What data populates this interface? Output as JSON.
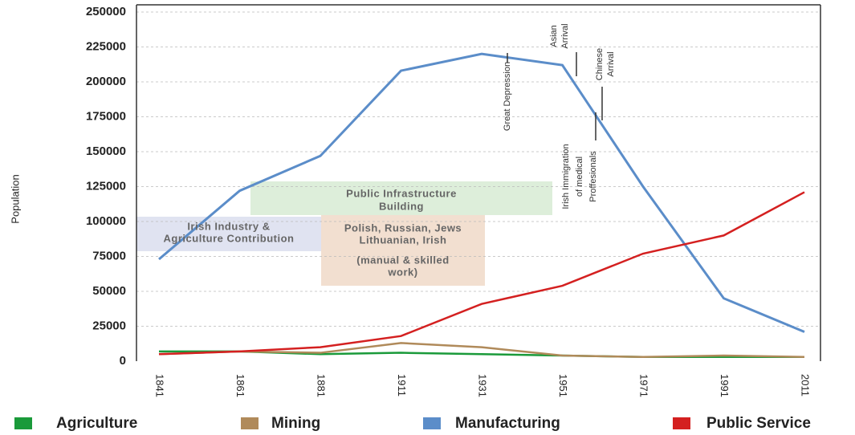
{
  "chart_data": {
    "type": "line",
    "ylabel": "Population",
    "categories": [
      "1841",
      "1861",
      "1881",
      "1911",
      "1931",
      "1951",
      "1971",
      "1991",
      "2011"
    ],
    "series": [
      {
        "name": "Agriculture",
        "color": "#1a9a3a",
        "values": [
          7000,
          7000,
          5000,
          6000,
          5000,
          4000,
          3000,
          3000,
          3000
        ]
      },
      {
        "name": "Mining",
        "color": "#b08a5a",
        "values": [
          5000,
          7000,
          6000,
          13000,
          10000,
          4000,
          3000,
          4000,
          3000
        ]
      },
      {
        "name": "Manufacturing",
        "color": "#5b8dc9",
        "values": [
          73000,
          122000,
          147000,
          208000,
          220000,
          212000,
          125000,
          45000,
          21000
        ]
      },
      {
        "name": "Public Service",
        "color": "#d42020",
        "values": [
          5000,
          7000,
          10000,
          18000,
          41000,
          54000,
          77000,
          90000,
          121000
        ]
      }
    ],
    "ylim": [
      0,
      250000
    ],
    "yticks": [
      0,
      25000,
      50000,
      75000,
      100000,
      125000,
      150000,
      175000,
      200000,
      225000,
      250000
    ],
    "grid": true,
    "annotations": [
      {
        "lines": [
          "Irish Industry &",
          "Agriculture Contribution"
        ]
      },
      {
        "lines": [
          "Public Infrastructure",
          "Building"
        ]
      },
      {
        "lines": [
          "Polish, Russian, Jews",
          "Lithuanian, Irish",
          "(manual & skilled",
          "work)"
        ]
      },
      {
        "lines": [
          "Great Depression"
        ]
      },
      {
        "lines": [
          "Asian",
          "Arrival"
        ]
      },
      {
        "lines": [
          "Chinese",
          "Arrival"
        ]
      },
      {
        "lines": [
          "Irish Immigration",
          "of medical",
          "Proffesionals"
        ]
      }
    ]
  }
}
